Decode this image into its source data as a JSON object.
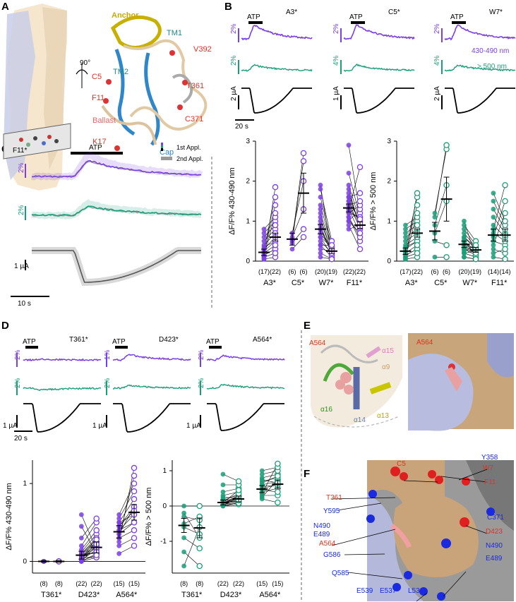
{
  "panels": {
    "a": "A",
    "b": "B",
    "c": "C",
    "d": "D",
    "e": "E",
    "f": "F"
  },
  "colors": {
    "violet": "#7b3fe4",
    "green": "#1a9e78",
    "black": "#000000"
  },
  "panelA": {
    "rotation": "90°",
    "labels": {
      "anchor": "Anchor",
      "tm1": "TM1",
      "tm2": "TM2",
      "v392": "V392",
      "c5": "C5",
      "f11": "F11",
      "t361": "T361",
      "ballast": "Ballast",
      "c371": "C371",
      "k17": "K17",
      "cap": "Cap"
    }
  },
  "panelB": {
    "stimulus": "ATP",
    "mutants": [
      "A3*",
      "C5*",
      "W7*"
    ],
    "violet_scales": [
      "2%",
      "2%",
      "2%"
    ],
    "green_scales": [
      "2%",
      "4%",
      "4%"
    ],
    "current_scales": [
      "2 µA",
      "1 µA",
      "2 µA"
    ],
    "time_scale": "20 s",
    "violet_band": "430-490 nm",
    "green_band": "> 500 nm"
  },
  "panelC": {
    "mutant": "F11*",
    "stimulus": "ATP",
    "legend": [
      "1st Appl.",
      "2nd Appl."
    ],
    "violet_scale": "2%",
    "green_scale": "2%",
    "current_scale": "1 µA",
    "time_scale": "10 s"
  },
  "panelD": {
    "stimulus": "ATP",
    "mutants": [
      "T361*",
      "D423*",
      "A564*"
    ],
    "violet_scales": [
      "2%",
      "1%",
      "2%"
    ],
    "green_scales": [
      "2%",
      "2%",
      "2%"
    ],
    "current_scales": [
      "1 µA",
      "1 µA",
      "1 µA"
    ],
    "time_scale": "20 s"
  },
  "panelE": {
    "a564": "A564",
    "helices": [
      "α15",
      "α9",
      "α16",
      "α14",
      "α13"
    ]
  },
  "panelF": {
    "red": [
      "C5",
      "W7",
      "F11",
      "T361",
      "D423",
      "A564"
    ],
    "blue": [
      "Y358",
      "Y595",
      "C371",
      "N490",
      "E489",
      "G586",
      "Q585",
      "E539",
      "E537",
      "L536"
    ]
  },
  "chart_data": [
    {
      "type": "scatter",
      "id": "B-violet",
      "ylabel": "ΔF/F% 430-490 nm",
      "ylim": [
        0,
        3
      ],
      "yticks": [
        0,
        1,
        2,
        3
      ],
      "color": "#7b3fe4",
      "categories": [
        "A3*",
        "C5*",
        "W7*",
        "F11*"
      ],
      "n": [
        [
          "(17)",
          "(22)"
        ],
        [
          "(6)",
          "(6)"
        ],
        [
          "(20)",
          "(19)"
        ],
        [
          "(22)",
          "(22)"
        ]
      ],
      "first_mean": [
        0.22,
        0.55,
        0.8,
        1.33
      ],
      "second_mean": [
        0.6,
        1.7,
        0.25,
        0.9
      ],
      "first_err": [
        0.08,
        0.15,
        0.12,
        0.1
      ],
      "second_err": [
        0.1,
        0.5,
        0.06,
        0.08
      ],
      "first_pts": [
        [
          0.05,
          0.1,
          0.15,
          0.2,
          0.25,
          0.3,
          0.4,
          0.5,
          0.6,
          0.7,
          0.8,
          0.1,
          0.2,
          0.3,
          0.05,
          0.15,
          0.35
        ],
        [
          0.3,
          0.45,
          0.6,
          0.7,
          0.5,
          0.55
        ],
        [
          0.2,
          0.4,
          0.6,
          0.8,
          1.0,
          1.2,
          1.4,
          1.6,
          1.8,
          1.9,
          0.5,
          0.7,
          0.9,
          0.3,
          0.1,
          0.6,
          1.1,
          0.8,
          0.4,
          1.3
        ],
        [
          0.9,
          1.1,
          1.3,
          1.5,
          1.7,
          1.9,
          2.2,
          2.9,
          1.0,
          1.2,
          1.4,
          1.6,
          1.3,
          1.1,
          1.8,
          1.5,
          0.8,
          1.0,
          1.2,
          1.4,
          1.6,
          1.25
        ]
      ],
      "second_pts": [
        [
          0.1,
          0.2,
          0.3,
          0.4,
          0.5,
          0.6,
          0.7,
          0.8,
          0.9,
          1.0,
          1.1,
          1.2,
          1.4,
          1.6,
          1.85,
          0.3,
          0.5,
          0.7,
          0.9,
          0.4,
          0.6,
          0.2
        ],
        [
          0.6,
          0.8,
          1.3,
          2.0,
          2.5,
          2.7
        ],
        [
          0.05,
          0.1,
          0.15,
          0.2,
          0.25,
          0.3,
          0.35,
          0.4,
          0.5,
          0.1,
          0.2,
          0.3,
          0.15,
          0.25,
          0.05,
          0.35,
          0.2,
          0.3,
          0.4
        ],
        [
          0.3,
          0.5,
          0.7,
          0.8,
          0.9,
          1.0,
          1.1,
          1.2,
          1.3,
          1.4,
          1.5,
          1.7,
          2.35,
          0.6,
          0.8,
          1.0,
          0.9,
          0.7,
          1.1,
          0.85,
          0.95,
          1.05
        ]
      ]
    },
    {
      "type": "scatter",
      "id": "B-green",
      "ylabel": "ΔF/F% > 500 nm",
      "ylim": [
        0,
        3
      ],
      "yticks": [
        0,
        1,
        2,
        3
      ],
      "color": "#1a9e78",
      "categories": [
        "A3*",
        "C5*",
        "W7*",
        "F11*"
      ],
      "n": [
        [
          "(17)",
          "(22)"
        ],
        [
          "(6)",
          "(6)"
        ],
        [
          "(20)",
          "(19)"
        ],
        [
          "(14)",
          "(14)"
        ]
      ],
      "first_mean": [
        0.25,
        0.75,
        0.42,
        0.65
      ],
      "second_mean": [
        0.7,
        1.55,
        0.28,
        0.65
      ],
      "first_err": [
        0.08,
        0.22,
        0.08,
        0.15
      ],
      "second_err": [
        0.1,
        0.55,
        0.06,
        0.15
      ],
      "first_pts": [
        [
          0.05,
          0.1,
          0.15,
          0.2,
          0.3,
          0.4,
          0.5,
          0.6,
          0.7,
          0.8,
          0.9,
          0.1,
          0.2,
          0.3,
          0.05,
          0.15,
          0.35
        ],
        [
          0.1,
          0.5,
          0.7,
          0.9,
          1.2,
          1.1
        ],
        [
          0.1,
          0.2,
          0.3,
          0.4,
          0.5,
          0.6,
          0.7,
          0.8,
          0.9,
          1.0,
          0.3,
          0.4,
          0.5,
          0.2,
          0.1,
          0.6,
          0.35,
          0.45,
          0.25,
          0.55
        ],
        [
          0.1,
          0.3,
          0.5,
          0.7,
          0.9,
          1.1,
          1.3,
          1.5,
          1.7,
          0.4,
          0.6,
          0.8,
          0.2,
          0.65
        ]
      ],
      "second_pts": [
        [
          0.1,
          0.2,
          0.3,
          0.4,
          0.5,
          0.6,
          0.7,
          0.8,
          0.9,
          1.0,
          1.1,
          1.2,
          1.4,
          1.6,
          1.7,
          0.3,
          0.5,
          0.7,
          0.9,
          0.4,
          0.6,
          0.2
        ],
        [
          0.1,
          0.4,
          1.5,
          1.9,
          2.8,
          2.9
        ],
        [
          0.05,
          0.1,
          0.15,
          0.2,
          0.25,
          0.3,
          0.35,
          0.4,
          0.5,
          0.1,
          0.2,
          0.3,
          0.15,
          0.25,
          0.05,
          0.35,
          0.2,
          0.3,
          0.4
        ],
        [
          0.05,
          0.2,
          0.4,
          0.5,
          0.6,
          0.7,
          0.8,
          0.9,
          1.0,
          1.2,
          1.5,
          1.9,
          0.3,
          0.65
        ]
      ]
    },
    {
      "type": "scatter",
      "id": "D-violet",
      "ylabel": "ΔF/F% 430-490 nm",
      "ylim": [
        -0.15,
        1.3
      ],
      "yticks": [
        0,
        1
      ],
      "color": "#7b3fe4",
      "categories": [
        "T361*",
        "D423*",
        "A564*"
      ],
      "n": [
        [
          "(8)",
          "(8)"
        ],
        [
          "(22)",
          "(22)"
        ],
        [
          "(15)",
          "(15)"
        ]
      ],
      "first_mean": [
        0.0,
        0.08,
        0.38
      ],
      "second_mean": [
        0.0,
        0.18,
        0.63
      ],
      "first_err": [
        0.01,
        0.05,
        0.08
      ],
      "second_err": [
        0.01,
        0.07,
        0.1
      ],
      "first_pts": [
        [
          0,
          0,
          0,
          0,
          0,
          0,
          0,
          0
        ],
        [
          0,
          0,
          0.02,
          0.05,
          0.08,
          0.1,
          0.12,
          0.15,
          0.2,
          0.3,
          0.45,
          0.6,
          0,
          0.05,
          0.1,
          0.02,
          0.03,
          0.07,
          0.04,
          0.06,
          0.09,
          0.01
        ],
        [
          0.1,
          0.2,
          0.3,
          0.35,
          0.4,
          0.45,
          0.5,
          0.55,
          0.6,
          0.3,
          0.25,
          0.4,
          0.5,
          0.35,
          0.45
        ]
      ],
      "second_pts": [
        [
          0,
          0,
          0,
          0,
          0,
          0,
          0,
          0
        ],
        [
          0.05,
          0.1,
          0.15,
          0.2,
          0.25,
          0.3,
          0.35,
          0.4,
          0.5,
          0.55,
          0.1,
          0.15,
          0.2,
          0.05,
          0.1,
          0.25,
          0.3,
          0.12,
          0.18,
          0.22,
          0.28,
          0.08
        ],
        [
          0.2,
          0.3,
          0.4,
          0.5,
          0.6,
          0.7,
          0.8,
          0.9,
          1.0,
          1.1,
          1.2,
          0.5,
          0.6,
          0.7,
          0.65
        ]
      ]
    },
    {
      "type": "scatter",
      "id": "D-green",
      "ylabel": "ΔF/F% > 500 nm",
      "ylim": [
        -1.9,
        1.3
      ],
      "yticks": [
        -1,
        0,
        1
      ],
      "color": "#1a9e78",
      "categories": [
        "T361*",
        "D423*",
        "A564*"
      ],
      "n": [
        [
          "(8)",
          "(8)"
        ],
        [
          "(22)",
          "(22)"
        ],
        [
          "(15)",
          "(15)"
        ]
      ],
      "first_mean": [
        -0.55,
        0.1,
        0.48
      ],
      "second_mean": [
        -0.62,
        0.2,
        0.62
      ],
      "first_err": [
        0.2,
        0.07,
        0.1
      ],
      "second_err": [
        0.28,
        0.08,
        0.12
      ],
      "first_pts": [
        [
          0,
          -0.3,
          -0.6,
          -0.9,
          -1.3,
          -1.7,
          -0.5,
          -0.2
        ],
        [
          0,
          0.05,
          0.1,
          0.15,
          0.2,
          0.3,
          0.4,
          0.6,
          0.9,
          0,
          0.05,
          0.1,
          0.02,
          0.08,
          0.12,
          0.18,
          0.25,
          0.06,
          0.03,
          0.14,
          0.09,
          0.11
        ],
        [
          0.2,
          0.3,
          0.4,
          0.5,
          0.6,
          0.7,
          0.8,
          0.9,
          1.0,
          0.35,
          0.45,
          0.55,
          0.25,
          0.65,
          0.75
        ]
      ],
      "second_pts": [
        [
          0,
          -0.4,
          -0.8,
          -1.2,
          -1.7,
          -0.6,
          -0.3,
          -0.9
        ],
        [
          0.05,
          0.1,
          0.15,
          0.2,
          0.3,
          0.4,
          0.5,
          0.6,
          0.7,
          0.1,
          0.15,
          0.2,
          0.25,
          0.3,
          0.12,
          0.18,
          0.22,
          0.28,
          0.08,
          0.35,
          0.45,
          0.16
        ],
        [
          0.1,
          0.3,
          0.5,
          0.6,
          0.7,
          0.8,
          0.9,
          1.0,
          1.1,
          1.2,
          0.4,
          0.6,
          0.75,
          0.85,
          0.65
        ]
      ]
    }
  ]
}
